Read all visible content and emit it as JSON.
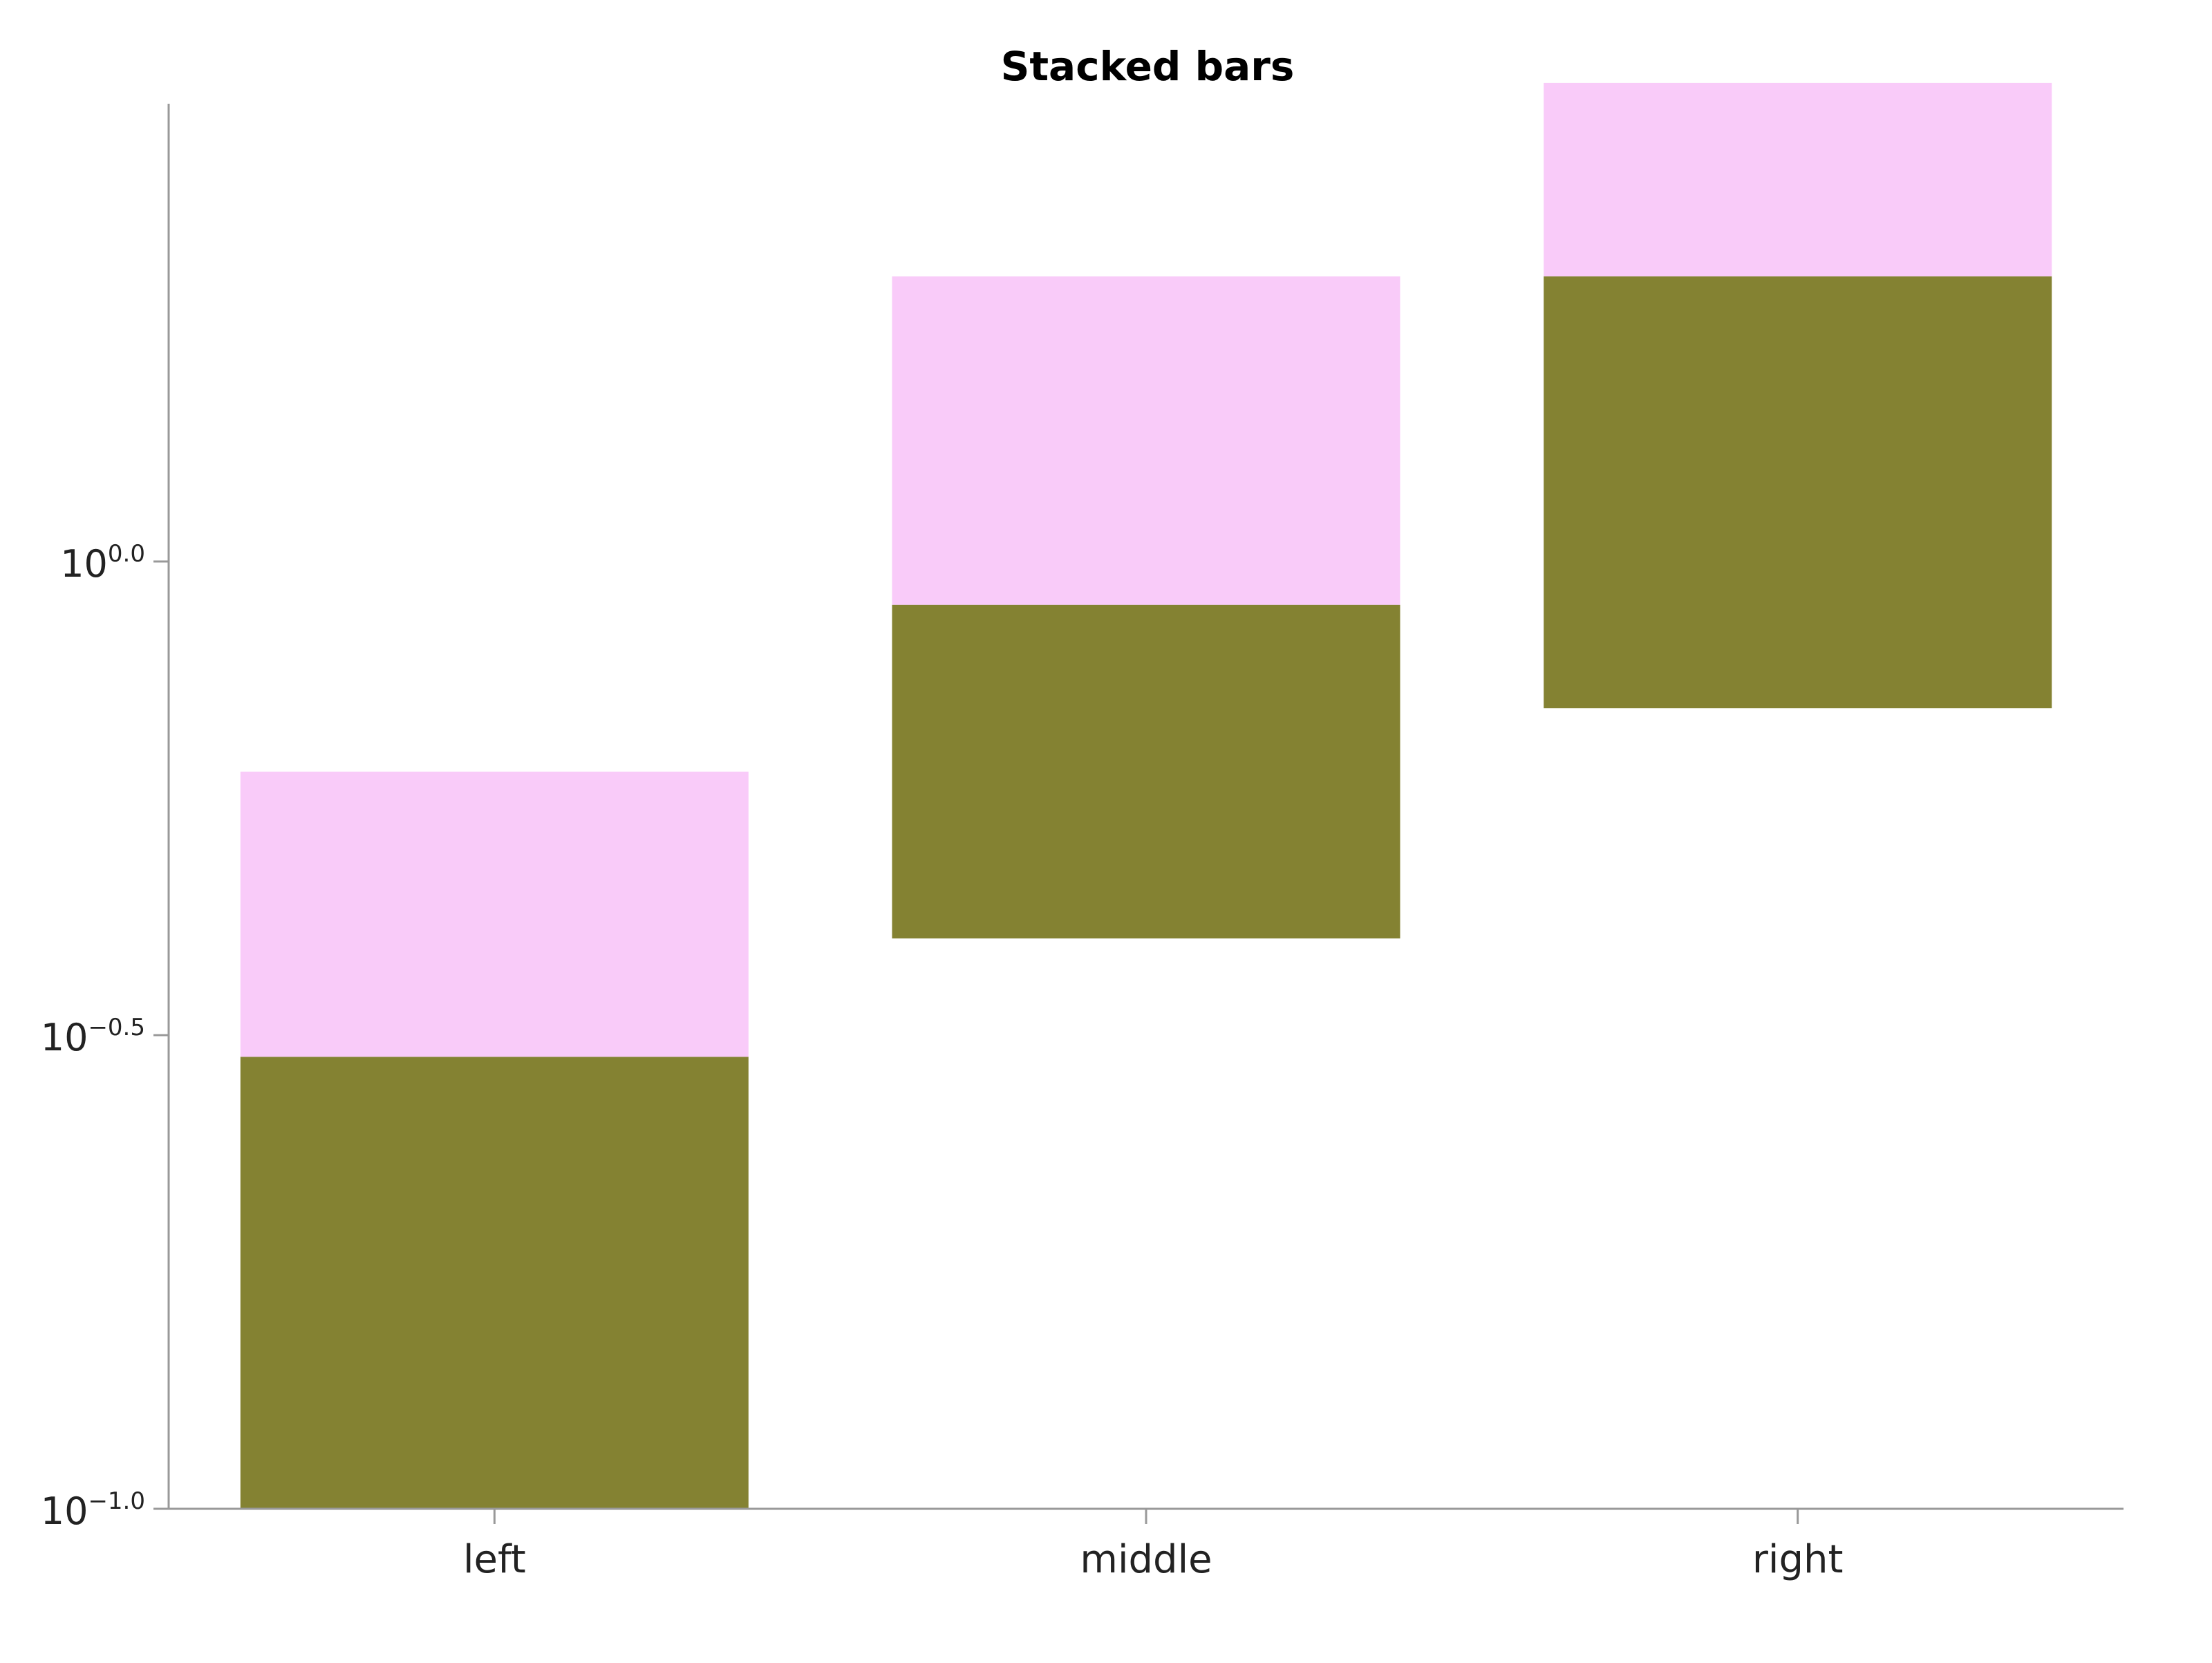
{
  "chart_data": {
    "type": "bar",
    "stacked": true,
    "title": "Stacked bars",
    "xlabel": "",
    "ylabel": "",
    "yscale": "log10",
    "ylim": [
      0.1,
      3.3
    ],
    "categories": [
      "left",
      "middle",
      "right"
    ],
    "series": [
      {
        "color": "#848232",
        "values": [
          {
            "bottom": 0.1,
            "top": 0.3
          },
          {
            "bottom": 0.4,
            "top": 0.9
          },
          {
            "bottom": 0.7,
            "top": 2.0
          }
        ]
      },
      {
        "color": "#f9cbf9",
        "values": [
          {
            "bottom": 0.3,
            "top": 0.6
          },
          {
            "bottom": 0.9,
            "top": 2.0
          },
          {
            "bottom": 2.0,
            "top": 3.2
          }
        ]
      }
    ],
    "yticks": [
      {
        "base": "10",
        "exp": "−1.0",
        "value": 0.1
      },
      {
        "base": "10",
        "exp": "−0.5",
        "value": 0.31623
      },
      {
        "base": "10",
        "exp": "0.0",
        "value": 1.0
      }
    ],
    "grid": false,
    "axis_color": "#999999"
  }
}
